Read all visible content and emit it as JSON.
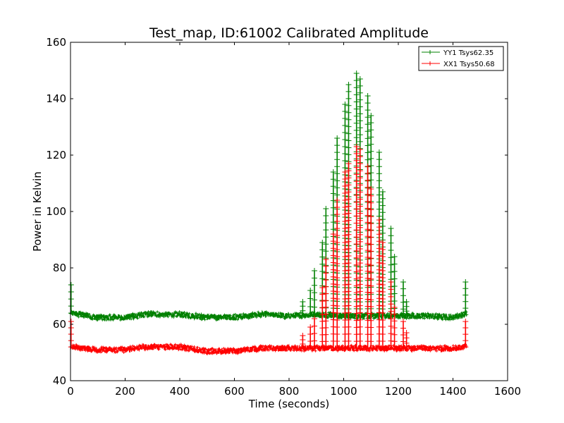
{
  "chart_data": {
    "type": "line",
    "title": "Test_map, ID:61002 Calibrated Amplitude",
    "xlabel": "Time (seconds)",
    "ylabel": "Power in Kelvin",
    "xlim": [
      0,
      1600
    ],
    "ylim": [
      40,
      160
    ],
    "x_ticks": [
      0,
      200,
      400,
      600,
      800,
      1000,
      1200,
      1400,
      1600
    ],
    "y_ticks": [
      40,
      60,
      80,
      100,
      120,
      140,
      160
    ],
    "x_tick_labels": [
      "0",
      "200",
      "400",
      "600",
      "800",
      "1000",
      "1200",
      "1400",
      "1600"
    ],
    "y_tick_labels": [
      "40",
      "60",
      "80",
      "100",
      "120",
      "140",
      "160"
    ],
    "grid": false,
    "legend_position": "top-right",
    "series": [
      {
        "name": "YY1 Tsys62.35",
        "color": "#008000",
        "marker": "plus",
        "baseline_points": [
          [
            0,
            64
          ],
          [
            100,
            62.5
          ],
          [
            200,
            62.5
          ],
          [
            280,
            63.5
          ],
          [
            400,
            63.5
          ],
          [
            500,
            62.5
          ],
          [
            600,
            62.5
          ],
          [
            700,
            63.5
          ],
          [
            800,
            63
          ],
          [
            900,
            63.5
          ],
          [
            1000,
            63
          ],
          [
            1100,
            63
          ],
          [
            1200,
            63
          ],
          [
            1300,
            63
          ],
          [
            1400,
            62.5
          ],
          [
            1450,
            63.5
          ]
        ],
        "peaks": [
          [
            2,
            74
          ],
          [
            850,
            68
          ],
          [
            878,
            72
          ],
          [
            893,
            79
          ],
          [
            922,
            89
          ],
          [
            935,
            101
          ],
          [
            962,
            114
          ],
          [
            976,
            126
          ],
          [
            1005,
            138
          ],
          [
            1018,
            145
          ],
          [
            1047,
            149
          ],
          [
            1060,
            147
          ],
          [
            1088,
            141
          ],
          [
            1100,
            134
          ],
          [
            1130,
            121
          ],
          [
            1143,
            107
          ],
          [
            1173,
            94
          ],
          [
            1186,
            84
          ],
          [
            1218,
            75
          ],
          [
            1230,
            68
          ],
          [
            1446,
            75
          ]
        ]
      },
      {
        "name": "XX1 Tsys50.68",
        "color": "#ff0000",
        "marker": "plus",
        "baseline_points": [
          [
            0,
            52
          ],
          [
            100,
            51
          ],
          [
            200,
            51
          ],
          [
            280,
            52
          ],
          [
            400,
            52
          ],
          [
            500,
            50.5
          ],
          [
            600,
            50.5
          ],
          [
            700,
            51.5
          ],
          [
            800,
            51.5
          ],
          [
            900,
            51.5
          ],
          [
            1000,
            51.5
          ],
          [
            1100,
            51.5
          ],
          [
            1200,
            51.5
          ],
          [
            1300,
            51.5
          ],
          [
            1400,
            51.5
          ],
          [
            1450,
            52
          ]
        ],
        "peaks": [
          [
            2,
            61
          ],
          [
            850,
            56
          ],
          [
            878,
            59
          ],
          [
            893,
            62
          ],
          [
            922,
            73
          ],
          [
            935,
            83
          ],
          [
            962,
            92
          ],
          [
            976,
            104
          ],
          [
            1005,
            114
          ],
          [
            1018,
            117
          ],
          [
            1047,
            123
          ],
          [
            1060,
            122
          ],
          [
            1088,
            116
          ],
          [
            1100,
            108
          ],
          [
            1130,
            97
          ],
          [
            1143,
            89
          ],
          [
            1173,
            75
          ],
          [
            1186,
            66
          ],
          [
            1218,
            61
          ],
          [
            1230,
            57
          ],
          [
            1446,
            61
          ]
        ]
      }
    ]
  }
}
